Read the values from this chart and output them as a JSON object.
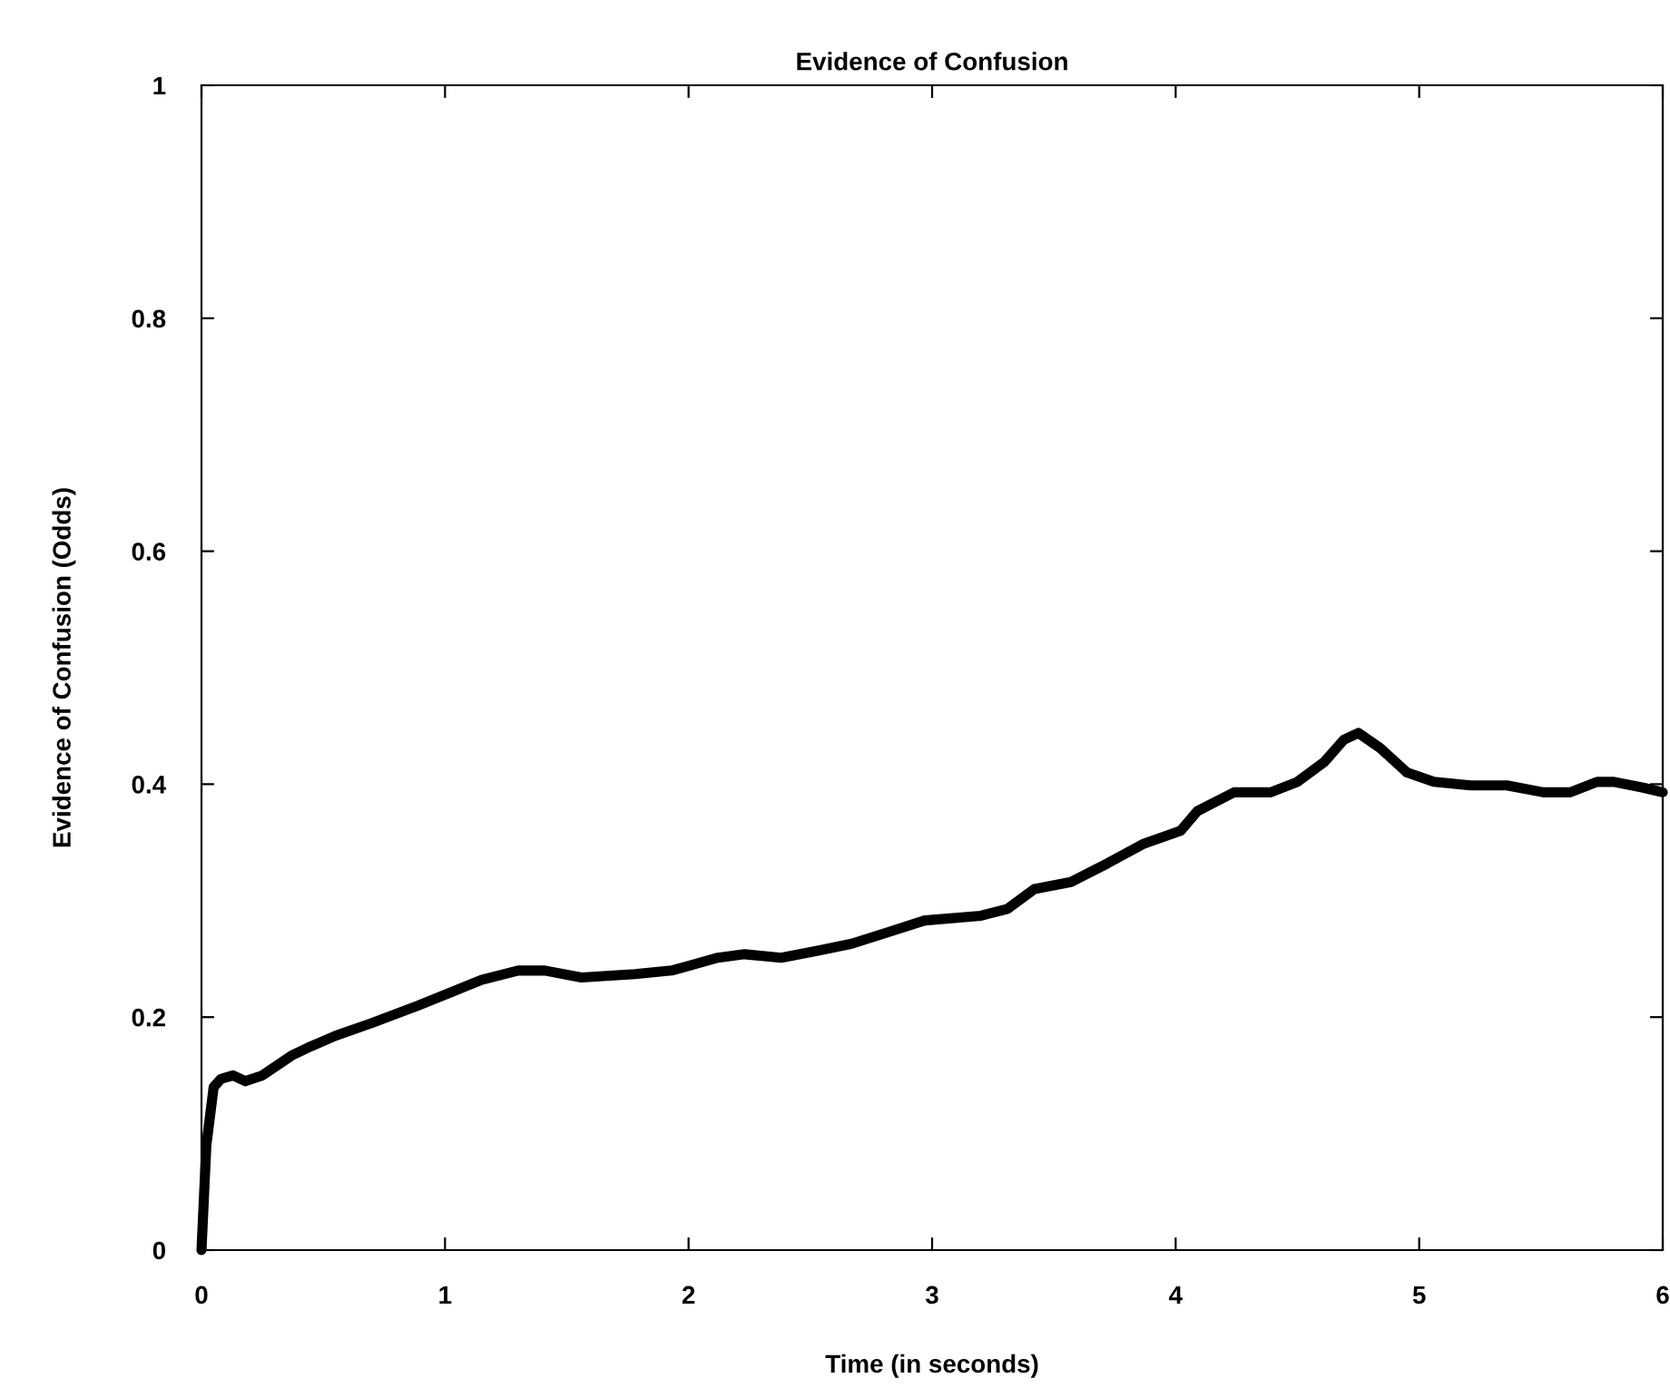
{
  "chart_data": {
    "type": "line",
    "title": "Evidence of Confusion",
    "xlabel": "Time (in seconds)",
    "ylabel": "Evidence of Confusion (Odds)",
    "xlim": [
      0,
      6
    ],
    "ylim": [
      0,
      1
    ],
    "xticks": [
      0,
      1,
      2,
      3,
      4,
      5,
      6
    ],
    "yticks": [
      0,
      0.2,
      0.4,
      0.6,
      0.8,
      1
    ],
    "grid": false,
    "legend": false,
    "marker": "none",
    "line_style": "solid",
    "series": [
      {
        "color": "#000000",
        "x": [
          0,
          0.02,
          0.05,
          0.08,
          0.13,
          0.18,
          0.25,
          0.37,
          0.45,
          0.55,
          0.7,
          0.89,
          1.15,
          1.3,
          1.41,
          1.56,
          1.78,
          1.93,
          2.12,
          2.23,
          2.38,
          2.53,
          2.67,
          2.82,
          2.97,
          3.2,
          3.31,
          3.42,
          3.57,
          3.72,
          3.87,
          4.02,
          4.09,
          4.24,
          4.39,
          4.5,
          4.61,
          4.69,
          4.75,
          4.84,
          4.95,
          5.06,
          5.21,
          5.36,
          5.51,
          5.62,
          5.73,
          5.8,
          5.92,
          6.0
        ],
        "values": [
          0,
          0.09,
          0.14,
          0.147,
          0.15,
          0.145,
          0.15,
          0.167,
          0.175,
          0.184,
          0.195,
          0.21,
          0.232,
          0.24,
          0.24,
          0.234,
          0.237,
          0.24,
          0.251,
          0.254,
          0.251,
          0.257,
          0.263,
          0.273,
          0.283,
          0.287,
          0.293,
          0.31,
          0.316,
          0.332,
          0.349,
          0.36,
          0.377,
          0.393,
          0.393,
          0.402,
          0.419,
          0.438,
          0.444,
          0.431,
          0.41,
          0.402,
          0.399,
          0.399,
          0.393,
          0.393,
          0.402,
          0.402,
          0.397,
          0.393
        ]
      }
    ]
  }
}
